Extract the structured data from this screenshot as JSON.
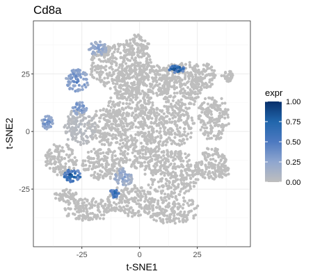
{
  "chart_data": {
    "type": "scatter",
    "title": "Cd8a",
    "xlabel": "t-SNE1",
    "ylabel": "t-SNE2",
    "xlim": [
      -46,
      48
    ],
    "ylim": [
      -50,
      48
    ],
    "x_ticks": [
      -25,
      0,
      25
    ],
    "x_tick_labels": [
      "-25",
      "0",
      "25"
    ],
    "y_ticks": [
      -25,
      0,
      25
    ],
    "y_tick_labels": [
      "-25",
      "0",
      "25"
    ],
    "grid": true,
    "background": "#ffffff",
    "grid_color": "#ebebeb",
    "point_color_low": "#bebebe",
    "point_color_high": "#08306b",
    "legend": {
      "title": "expr",
      "placement": "right",
      "ticks": [
        1.0,
        0.75,
        0.5,
        0.25,
        0.0
      ],
      "tick_labels": [
        "1.00",
        "0.75",
        "0.50",
        "0.25",
        "0.00"
      ],
      "colors": [
        "#08306b",
        "#2166ac",
        "#4d79c0",
        "#8fa6cf",
        "#bebebe"
      ]
    },
    "clusters": [
      {
        "cx": -8,
        "cy": 28,
        "rx": 14,
        "ry": 10,
        "expr": 0.0
      },
      {
        "cx": 2,
        "cy": 22,
        "rx": 12,
        "ry": 8,
        "expr": 0.0
      },
      {
        "cx": 18,
        "cy": 20,
        "rx": 9,
        "ry": 11,
        "expr": 0.0
      },
      {
        "cx": 27,
        "cy": 24,
        "rx": 6,
        "ry": 6,
        "expr": 0.0
      },
      {
        "cx": -4,
        "cy": 10,
        "rx": 10,
        "ry": 9,
        "expr": 0.0
      },
      {
        "cx": -14,
        "cy": 2,
        "rx": 9,
        "ry": 8,
        "expr": 0.0
      },
      {
        "cx": 12,
        "cy": 2,
        "rx": 12,
        "ry": 9,
        "expr": 0.0
      },
      {
        "cx": 32,
        "cy": 6,
        "rx": 7,
        "ry": 10,
        "expr": 0.0
      },
      {
        "cx": -26,
        "cy": 2,
        "rx": 7,
        "ry": 8,
        "expr": 0.05
      },
      {
        "cx": -34,
        "cy": -12,
        "rx": 7,
        "ry": 7,
        "expr": 0.0
      },
      {
        "cx": -16,
        "cy": -14,
        "rx": 9,
        "ry": 7,
        "expr": 0.0
      },
      {
        "cx": 0,
        "cy": -8,
        "rx": 9,
        "ry": 8,
        "expr": 0.0
      },
      {
        "cx": 14,
        "cy": -18,
        "rx": 12,
        "ry": 10,
        "expr": 0.0
      },
      {
        "cx": 31,
        "cy": -14,
        "rx": 7,
        "ry": 7,
        "expr": 0.0
      },
      {
        "cx": -4,
        "cy": -30,
        "rx": 10,
        "ry": 7,
        "expr": 0.0
      },
      {
        "cx": 14,
        "cy": -34,
        "rx": 12,
        "ry": 6,
        "expr": 0.0
      },
      {
        "cx": -22,
        "cy": -34,
        "rx": 11,
        "ry": 5,
        "expr": 0.0
      },
      {
        "cx": -32,
        "cy": -28,
        "rx": 5,
        "ry": 3,
        "expr": 0.0
      },
      {
        "cx": -1,
        "cy": 38,
        "rx": 5,
        "ry": 4,
        "expr": 0.0
      },
      {
        "cx": -18,
        "cy": 36,
        "rx": 4,
        "ry": 3,
        "expr": 0.3
      },
      {
        "cx": -27,
        "cy": 22,
        "rx": 5,
        "ry": 5,
        "expr": 0.45
      },
      {
        "cx": -26,
        "cy": 10,
        "rx": 3,
        "ry": 3,
        "expr": 0.45
      },
      {
        "cx": 16,
        "cy": 27,
        "rx": 3.5,
        "ry": 1.5,
        "expr": 0.92
      },
      {
        "cx": -40,
        "cy": 4,
        "rx": 2.5,
        "ry": 3,
        "expr": 0.45
      },
      {
        "cx": -29,
        "cy": -19,
        "rx": 4,
        "ry": 3,
        "expr": 0.92
      },
      {
        "cx": -7,
        "cy": -20,
        "rx": 4,
        "ry": 4,
        "expr": 0.3
      },
      {
        "cx": -11,
        "cy": -27,
        "rx": 2,
        "ry": 2,
        "expr": 0.75
      },
      {
        "cx": 36,
        "cy": -17,
        "rx": 3,
        "ry": 3,
        "expr": 0.0
      },
      {
        "cx": 38,
        "cy": 24,
        "rx": 2.5,
        "ry": 2.5,
        "expr": 0.0
      }
    ]
  }
}
